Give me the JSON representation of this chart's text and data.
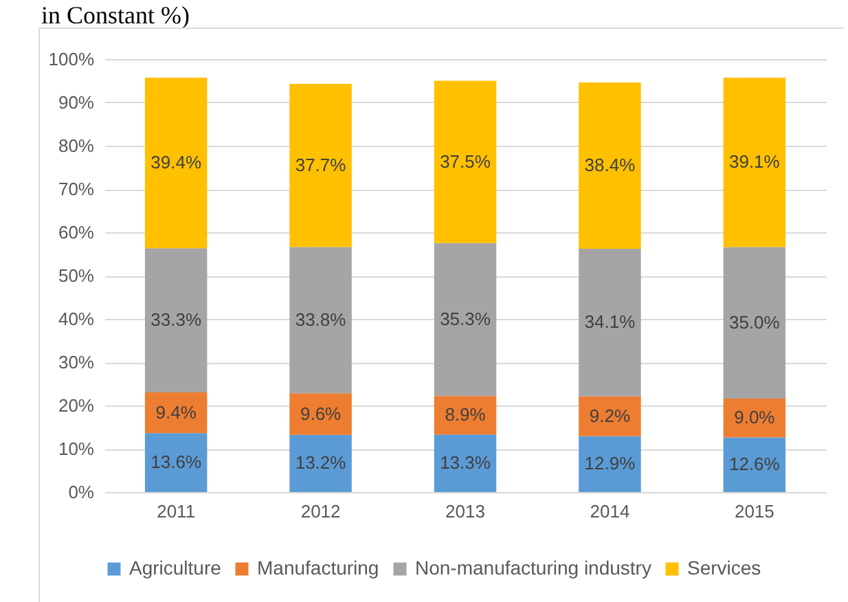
{
  "chart_data": {
    "type": "bar",
    "title": "in Constant %)",
    "stacked": true,
    "categories": [
      "2011",
      "2012",
      "2013",
      "2014",
      "2015"
    ],
    "series": [
      {
        "name": "Agriculture",
        "color": "#5b9bd5",
        "values": [
          13.6,
          13.2,
          13.3,
          12.9,
          12.6
        ],
        "value_labels": [
          "13.6%",
          "13.2%",
          "13.3%",
          "12.9%",
          "12.6%"
        ]
      },
      {
        "name": "Manufacturing",
        "color": "#ed7d31",
        "values": [
          9.4,
          9.6,
          8.9,
          9.2,
          9.0
        ],
        "value_labels": [
          "9.4%",
          "9.6%",
          "8.9%",
          "9.2%",
          "9.0%"
        ]
      },
      {
        "name": "Non-manufacturing industry",
        "color": "#a5a5a5",
        "values": [
          33.3,
          33.8,
          35.3,
          34.1,
          35.0
        ],
        "value_labels": [
          "33.3%",
          "33.8%",
          "35.3%",
          "34.1%",
          "35.0%"
        ]
      },
      {
        "name": "Services",
        "color": "#ffc000",
        "values": [
          39.4,
          37.7,
          37.5,
          38.4,
          39.1
        ],
        "value_labels": [
          "39.4%",
          "37.7%",
          "37.5%",
          "38.4%",
          "39.1%"
        ]
      }
    ],
    "ylim": [
      0,
      100
    ],
    "yticks": [
      {
        "value": 0,
        "label": "0%"
      },
      {
        "value": 10,
        "label": "10%"
      },
      {
        "value": 20,
        "label": "20%"
      },
      {
        "value": 30,
        "label": "30%"
      },
      {
        "value": 40,
        "label": "40%"
      },
      {
        "value": 50,
        "label": "50%"
      },
      {
        "value": 60,
        "label": "60%"
      },
      {
        "value": 70,
        "label": "70%"
      },
      {
        "value": 80,
        "label": "80%"
      },
      {
        "value": 90,
        "label": "90%"
      },
      {
        "value": 100,
        "label": "100%"
      }
    ],
    "grid": "y",
    "legend": "bottom"
  }
}
